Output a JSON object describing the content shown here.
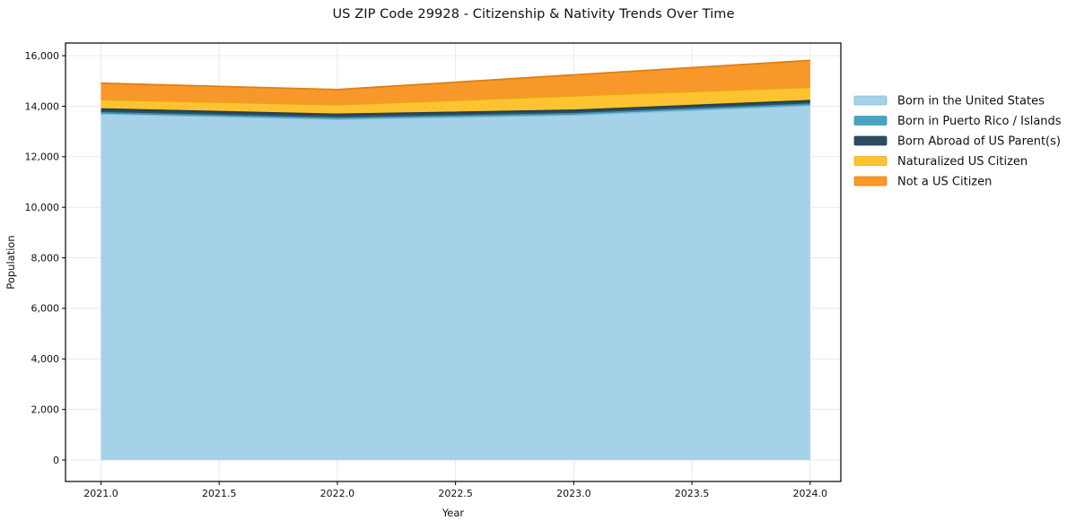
{
  "title": "US ZIP Code 29928 - Citizenship & Nativity Trends Over Time",
  "chart_data": {
    "type": "area",
    "stacked": true,
    "title": "US ZIP Code 29928 - Citizenship & Nativity Trends Over Time",
    "xlabel": "Year",
    "ylabel": "Population",
    "x": [
      2021,
      2022,
      2023,
      2024
    ],
    "series": [
      {
        "name": "Born in the United States",
        "color": "#a5d2e8",
        "edge_color": "#86bcd9",
        "values": [
          13700,
          13480,
          13650,
          14030
        ]
      },
      {
        "name": "Born in Puerto Rico / Islands",
        "color": "#44a6c2",
        "edge_color": "#3a93ac",
        "values": [
          40,
          50,
          50,
          50
        ]
      },
      {
        "name": "Born Abroad of US Parent(s)",
        "color": "#2c4d61",
        "edge_color": "#253f50",
        "values": [
          150,
          150,
          140,
          140
        ]
      },
      {
        "name": "Naturalized US Citizen",
        "color": "#fdc330",
        "edge_color": "#eda417",
        "values": [
          370,
          380,
          570,
          530
        ]
      },
      {
        "name": "Not a US Citizen",
        "color": "#f8982b",
        "edge_color": "#e07f12",
        "values": [
          650,
          600,
          830,
          1060
        ]
      }
    ],
    "stacked_totals": [
      14910,
      14660,
      15240,
      15810
    ],
    "x_ticks": {
      "values": [
        2021.0,
        2021.5,
        2022.0,
        2022.5,
        2023.0,
        2023.5,
        2024.0
      ],
      "labels": [
        "2021.0",
        "2021.5",
        "2022.0",
        "2022.5",
        "2023.0",
        "2023.5",
        "2024.0"
      ]
    },
    "y_ticks": {
      "values": [
        0,
        2000,
        4000,
        6000,
        8000,
        10000,
        12000,
        14000,
        16000
      ],
      "labels": [
        "0",
        "2,000",
        "4,000",
        "6,000",
        "8,000",
        "10,000",
        "12,000",
        "14,000",
        "16,000"
      ]
    },
    "xlim": [
      2020.85,
      2024.13
    ],
    "ylim": [
      -850,
      16500
    ],
    "grid": true,
    "grid_color": "#e7e7e7",
    "spine_color": "#000000",
    "tick_color": "#000000",
    "text_color": "#111111",
    "background": "#ffffff",
    "legend": {
      "position": "outside-right",
      "frame": false
    }
  }
}
